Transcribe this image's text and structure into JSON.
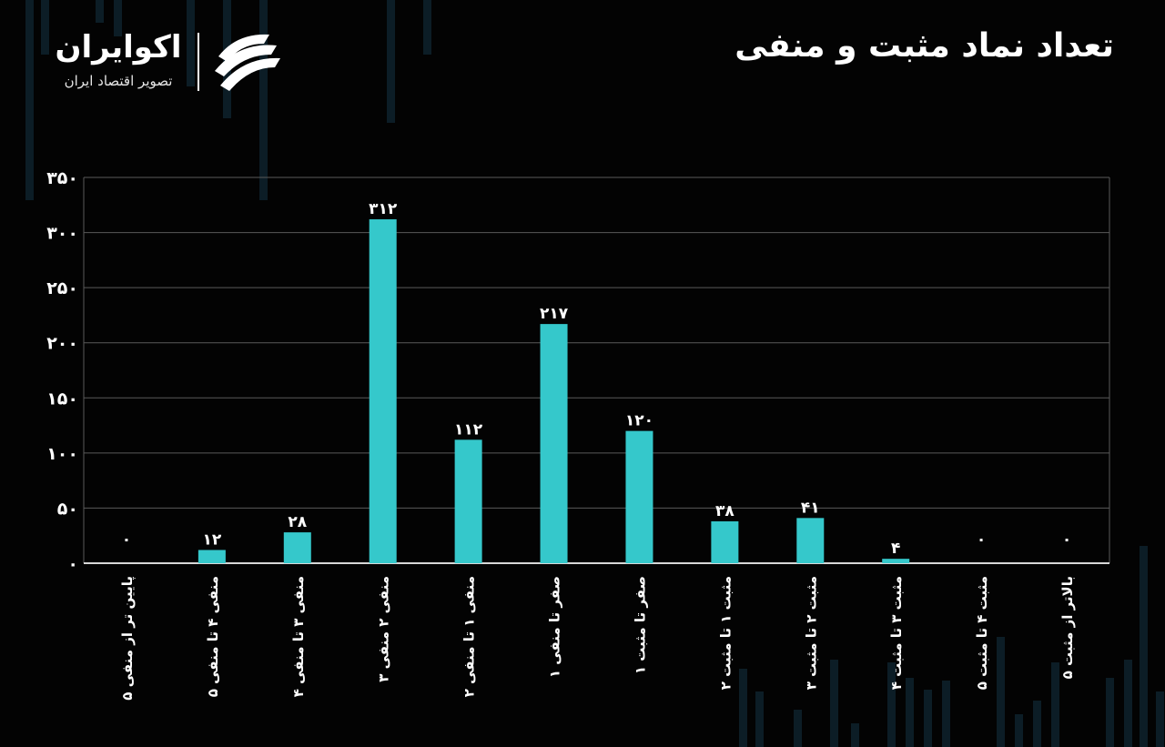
{
  "header": {
    "title": "تعداد نماد مثبت و منفی"
  },
  "brand": {
    "name": "اکوایران",
    "tagline": "تصویر اقتصاد ایران",
    "logo_icon": "ecoiran-swoosh-icon"
  },
  "colors": {
    "background": "#030303",
    "bar": "#35c8cb",
    "grid": "#5a5a5a",
    "text": "#ffffff"
  },
  "chart_data": {
    "type": "bar",
    "title": "تعداد نماد مثبت و منفی",
    "xlabel": "",
    "ylabel": "",
    "ylim": [
      0,
      350
    ],
    "yticks": [
      0,
      50,
      100,
      150,
      200,
      250,
      300,
      350
    ],
    "ytick_labels": [
      "۰",
      "۵۰",
      "۱۰۰",
      "۱۵۰",
      "۲۰۰",
      "۲۵۰",
      "۳۰۰",
      "۳۵۰"
    ],
    "grid": true,
    "legend": "none",
    "categories": [
      "پایین تر از منفی ۵",
      "منفی ۴ تا منفی ۵",
      "منفی ۳ تا منفی ۴",
      "منفی ۲ منفی ۳",
      "منفی ۱ تا منفی ۲",
      "صفر تا منفی ۱",
      "صفر تا مثبت ۱",
      "مثبت ۱ تا مثبت ۲",
      "مثبت ۲ تا مثبت ۳",
      "مثبت ۳ تا مثبت ۴",
      "مثبت ۴ تا مثبت ۵",
      "بالاتر از مثبت ۵"
    ],
    "values": [
      0,
      12,
      28,
      312,
      112,
      217,
      120,
      38,
      41,
      4,
      0,
      0
    ],
    "value_labels": [
      "۰",
      "۱۲",
      "۲۸",
      "۳۱۲",
      "۱۱۲",
      "۲۱۷",
      "۱۲۰",
      "۳۸",
      "۴۱",
      "۴",
      "۰",
      "۰"
    ]
  }
}
